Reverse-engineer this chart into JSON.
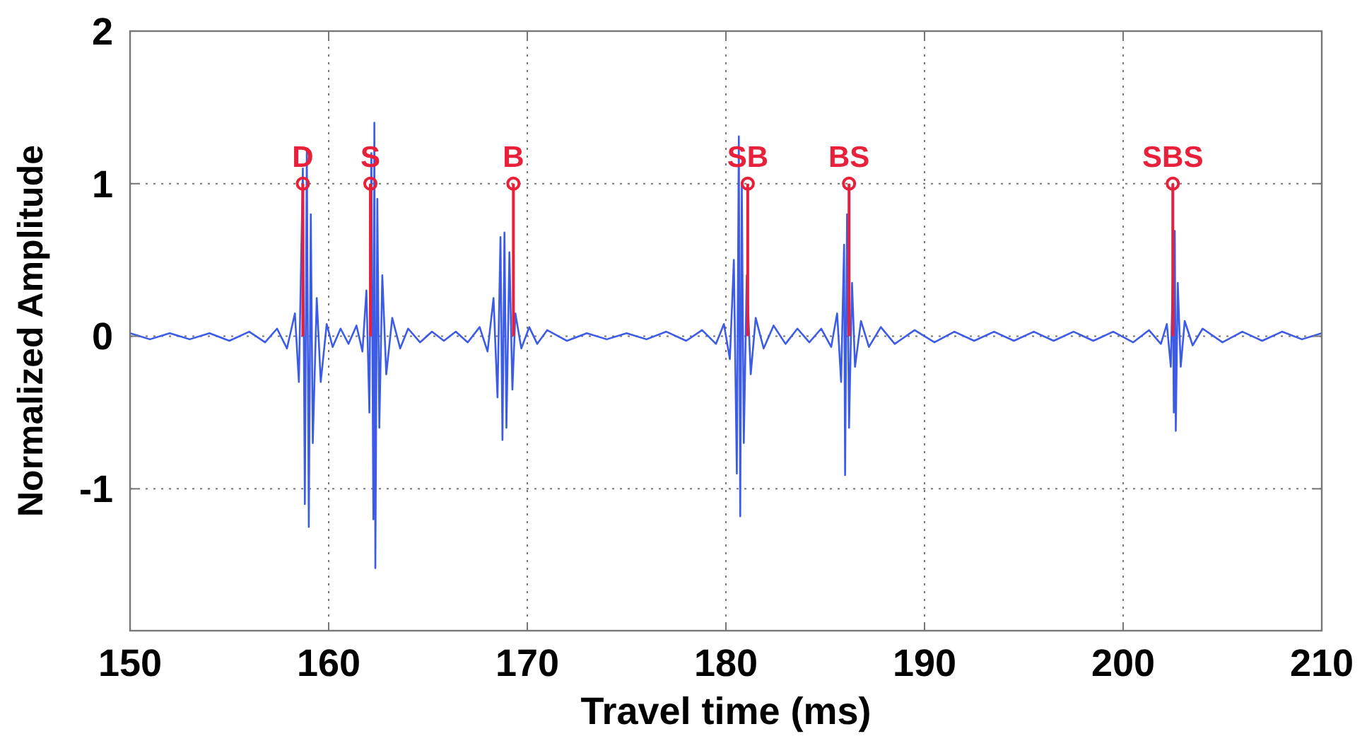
{
  "chart_data": {
    "type": "line",
    "xlabel": "Travel time (ms)",
    "ylabel": "Normalized Amplitude",
    "xlim": [
      150,
      210
    ],
    "xticks": [
      150,
      160,
      170,
      180,
      190,
      200,
      210
    ],
    "ylim": [
      -1.93,
      2
    ],
    "yticks": [
      -1,
      0,
      1,
      2
    ],
    "grid": true,
    "line_style": "solid",
    "series": [
      {
        "color": "#3d5ce6",
        "marker": "none",
        "x": [
          150,
          151,
          152,
          153,
          154,
          155,
          156,
          156.8,
          157.4,
          157.9,
          158.3,
          158.5,
          158.7,
          158.8,
          158.9,
          159.0,
          159.1,
          159.2,
          159.4,
          159.6,
          159.9,
          160.2,
          160.6,
          161.0,
          161.4,
          161.7,
          161.9,
          162.05,
          162.15,
          162.25,
          162.3,
          162.35,
          162.45,
          162.55,
          162.7,
          162.9,
          163.2,
          163.6,
          164,
          164.6,
          165.2,
          165.8,
          166.4,
          167,
          167.6,
          168.0,
          168.3,
          168.5,
          168.65,
          168.75,
          168.85,
          168.95,
          169.1,
          169.25,
          169.4,
          169.7,
          170.1,
          170.5,
          171,
          172,
          173,
          174,
          175,
          176,
          177,
          178,
          178.8,
          179.5,
          179.9,
          180.2,
          180.4,
          180.55,
          180.65,
          180.72,
          180.8,
          180.9,
          181.05,
          181.25,
          181.5,
          181.9,
          182.4,
          183,
          183.6,
          184.2,
          184.8,
          185.3,
          185.6,
          185.8,
          185.95,
          186.0,
          186.1,
          186.2,
          186.35,
          186.5,
          186.8,
          187.2,
          187.8,
          188.5,
          189.5,
          190.5,
          191.5,
          192.5,
          193.5,
          194.5,
          195.5,
          196.5,
          197.5,
          198.5,
          199.5,
          200.5,
          201.3,
          201.9,
          202.2,
          202.4,
          202.5,
          202.55,
          202.6,
          202.65,
          202.75,
          202.9,
          203.1,
          203.5,
          204,
          205,
          206,
          207,
          208,
          209,
          210
        ],
        "values": [
          0.02,
          -0.02,
          0.02,
          -0.02,
          0.02,
          -0.03,
          0.03,
          -0.04,
          0.05,
          -0.08,
          0.15,
          -0.3,
          1.1,
          -1.1,
          1.22,
          -1.25,
          0.8,
          -0.7,
          0.25,
          -0.3,
          0.08,
          -0.07,
          0.05,
          -0.05,
          0.07,
          -0.1,
          0.3,
          -0.5,
          1.2,
          -1.2,
          1.4,
          -1.52,
          0.9,
          -0.6,
          0.4,
          -0.25,
          0.12,
          -0.08,
          0.05,
          -0.04,
          0.03,
          -0.03,
          0.03,
          -0.04,
          0.06,
          -0.1,
          0.25,
          -0.4,
          0.65,
          -0.68,
          0.68,
          -0.6,
          0.55,
          -0.35,
          0.15,
          -0.08,
          0.06,
          -0.05,
          0.04,
          -0.03,
          0.02,
          -0.02,
          0.02,
          -0.02,
          0.03,
          -0.03,
          0.04,
          -0.05,
          0.08,
          -0.15,
          0.5,
          -0.9,
          1.31,
          -1.18,
          1.0,
          -0.7,
          0.4,
          -0.25,
          0.12,
          -0.08,
          0.07,
          -0.05,
          0.05,
          -0.04,
          0.05,
          -0.07,
          0.15,
          -0.3,
          0.6,
          -0.91,
          0.8,
          -0.6,
          0.35,
          -0.2,
          0.1,
          -0.07,
          0.06,
          -0.05,
          0.04,
          -0.04,
          0.03,
          -0.03,
          0.03,
          -0.03,
          0.03,
          -0.03,
          0.03,
          -0.03,
          0.03,
          -0.04,
          0.04,
          -0.05,
          0.08,
          -0.2,
          0.4,
          -0.5,
          0.69,
          -0.62,
          0.35,
          -0.2,
          0.1,
          -0.06,
          0.05,
          -0.04,
          0.03,
          -0.03,
          0.03,
          -0.02,
          0.02
        ]
      },
      {
        "type": "lollipop",
        "color": "#e8203a",
        "marker": "circle",
        "x": [
          158.7,
          162.1,
          169.3,
          181.1,
          186.2,
          202.5
        ],
        "values": [
          1,
          1,
          1,
          1,
          1,
          1
        ],
        "value_labels": [
          "D",
          "S",
          "B",
          "SB",
          "BS",
          "SBS"
        ]
      }
    ]
  }
}
